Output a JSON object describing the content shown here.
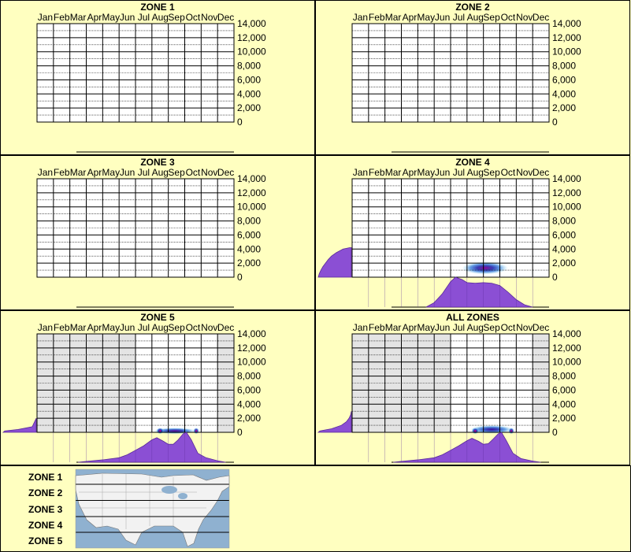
{
  "colors": {
    "background": "#ffffc0",
    "profile": "#8b4fd4",
    "heat_core": "#ff0090",
    "heat_dark": "#1a0a9a",
    "heat_mid": "#1e6fd8",
    "heat_light": "#8fdcf0",
    "masked": "#e4e4e4",
    "map_water": "#8fb1d0",
    "map_land": "#f2f2f2"
  },
  "chart_data": [
    {
      "type": "heatmap",
      "title": "ZONE 1",
      "categories": [
        "Jan",
        "Feb",
        "Mar",
        "Apr",
        "May",
        "Jun",
        "Jul",
        "Aug",
        "Sep",
        "Oct",
        "Nov",
        "Dec"
      ],
      "ylim": [
        0,
        14000
      ],
      "yticks": [
        "0",
        "2,000",
        "4,000",
        "6,000",
        "8,000",
        "10,000",
        "12,000",
        "14,000"
      ],
      "masked_months": [],
      "hotspots": [],
      "elevation_profile": [],
      "season_profile": []
    },
    {
      "type": "heatmap",
      "title": "ZONE 2",
      "categories": [
        "Jan",
        "Feb",
        "Mar",
        "Apr",
        "May",
        "Jun",
        "Jul",
        "Aug",
        "Sep",
        "Oct",
        "Nov",
        "Dec"
      ],
      "ylim": [
        0,
        14000
      ],
      "yticks": [
        "0",
        "2,000",
        "4,000",
        "6,000",
        "8,000",
        "10,000",
        "12,000",
        "14,000"
      ],
      "masked_months": [],
      "hotspots": [],
      "elevation_profile": [],
      "season_profile": []
    },
    {
      "type": "heatmap",
      "title": "ZONE 3",
      "categories": [
        "Jan",
        "Feb",
        "Mar",
        "Apr",
        "May",
        "Jun",
        "Jul",
        "Aug",
        "Sep",
        "Oct",
        "Nov",
        "Dec"
      ],
      "ylim": [
        0,
        14000
      ],
      "yticks": [
        "0",
        "2,000",
        "4,000",
        "6,000",
        "8,000",
        "10,000",
        "12,000",
        "14,000"
      ],
      "masked_months": [],
      "hotspots": [],
      "elevation_profile": [],
      "season_profile": []
    },
    {
      "type": "heatmap",
      "title": "ZONE 4",
      "categories": [
        "Jan",
        "Feb",
        "Mar",
        "Apr",
        "May",
        "Jun",
        "Jul",
        "Aug",
        "Sep",
        "Oct",
        "Nov",
        "Dec"
      ],
      "ylim": [
        0,
        14000
      ],
      "yticks": [
        "0",
        "2,000",
        "4,000",
        "6,000",
        "8,000",
        "10,000",
        "12,000",
        "14,000"
      ],
      "masked_months": [],
      "hotspots": [
        {
          "month": 8.6,
          "elev": 1300,
          "spread_month": 2.8,
          "spread_elev": 900,
          "intensity": 0.85
        }
      ],
      "elevation_profile": [
        [
          0,
          1.0
        ],
        [
          500,
          0.97
        ],
        [
          1000,
          0.92
        ],
        [
          1500,
          0.86
        ],
        [
          2000,
          0.78
        ],
        [
          2500,
          0.7
        ],
        [
          3000,
          0.6
        ],
        [
          3500,
          0.45
        ],
        [
          4000,
          0.25
        ],
        [
          4200,
          0.05
        ]
      ],
      "season_profile": [
        [
          5.5,
          0
        ],
        [
          6.0,
          0.15
        ],
        [
          6.5,
          0.45
        ],
        [
          7.0,
          0.85
        ],
        [
          7.3,
          1.0
        ],
        [
          7.7,
          0.92
        ],
        [
          8.0,
          0.82
        ],
        [
          8.5,
          0.8
        ],
        [
          9.0,
          0.82
        ],
        [
          9.5,
          0.8
        ],
        [
          10.0,
          0.72
        ],
        [
          10.5,
          0.5
        ],
        [
          11.0,
          0.25
        ],
        [
          11.5,
          0.08
        ],
        [
          12.0,
          0
        ]
      ]
    },
    {
      "type": "heatmap",
      "title": "ZONE 5",
      "categories": [
        "Jan",
        "Feb",
        "Mar",
        "Apr",
        "May",
        "Jun",
        "Jul",
        "Aug",
        "Sep",
        "Oct",
        "Nov",
        "Dec"
      ],
      "ylim": [
        0,
        14000
      ],
      "yticks": [
        "0",
        "2,000",
        "4,000",
        "6,000",
        "8,000",
        "10,000",
        "12,000",
        "14,000"
      ],
      "masked_months": [
        1,
        2,
        3,
        4,
        5,
        6,
        12
      ],
      "hotspots": [
        {
          "month": 8.9,
          "elev": 200,
          "spread_month": 2.6,
          "spread_elev": 380,
          "intensity": 0.8
        },
        {
          "month": 8.0,
          "elev": 200,
          "spread_month": 0.45,
          "spread_elev": 180,
          "intensity": 1.0
        },
        {
          "month": 10.2,
          "elev": 200,
          "spread_month": 0.35,
          "spread_elev": 180,
          "intensity": 1.0
        }
      ],
      "elevation_profile": [
        [
          0,
          1.0
        ],
        [
          200,
          0.95
        ],
        [
          400,
          0.55
        ],
        [
          800,
          0.12
        ],
        [
          1500,
          0.05
        ],
        [
          2000,
          0
        ]
      ],
      "season_profile": [
        [
          3.5,
          0
        ],
        [
          4.0,
          0.03
        ],
        [
          5.0,
          0.08
        ],
        [
          6.0,
          0.15
        ],
        [
          6.5,
          0.25
        ],
        [
          7.0,
          0.4
        ],
        [
          7.5,
          0.55
        ],
        [
          8.0,
          0.75
        ],
        [
          8.3,
          0.82
        ],
        [
          8.7,
          0.7
        ],
        [
          9.0,
          0.6
        ],
        [
          9.3,
          0.6
        ],
        [
          9.6,
          0.75
        ],
        [
          9.9,
          0.95
        ],
        [
          10.1,
          1.0
        ],
        [
          10.4,
          0.75
        ],
        [
          10.8,
          0.3
        ],
        [
          11.3,
          0.15
        ],
        [
          12.0,
          0.05
        ],
        [
          12.5,
          0
        ]
      ]
    },
    {
      "type": "heatmap",
      "title": "ALL ZONES",
      "categories": [
        "Jan",
        "Feb",
        "Mar",
        "Apr",
        "May",
        "Jun",
        "Jul",
        "Aug",
        "Sep",
        "Oct",
        "Nov",
        "Dec"
      ],
      "ylim": [
        0,
        14000
      ],
      "yticks": [
        "0",
        "2,000",
        "4,000",
        "6,000",
        "8,000",
        "10,000",
        "12,000",
        "14,000"
      ],
      "masked_months": [
        1,
        2,
        3,
        4,
        5,
        6,
        12
      ],
      "hotspots": [
        {
          "month": 9.0,
          "elev": 400,
          "spread_month": 2.6,
          "spread_elev": 600,
          "intensity": 0.75
        },
        {
          "month": 8.0,
          "elev": 200,
          "spread_month": 0.45,
          "spread_elev": 180,
          "intensity": 1.0
        },
        {
          "month": 10.2,
          "elev": 200,
          "spread_month": 0.35,
          "spread_elev": 180,
          "intensity": 1.0
        }
      ],
      "elevation_profile": [
        [
          0,
          1.0
        ],
        [
          200,
          0.95
        ],
        [
          500,
          0.6
        ],
        [
          1000,
          0.3
        ],
        [
          1500,
          0.15
        ],
        [
          2000,
          0.07
        ],
        [
          2500,
          0.02
        ],
        [
          3000,
          0
        ]
      ],
      "season_profile": [
        [
          3.5,
          0
        ],
        [
          4.0,
          0.03
        ],
        [
          5.0,
          0.08
        ],
        [
          6.0,
          0.15
        ],
        [
          6.5,
          0.25
        ],
        [
          7.0,
          0.4
        ],
        [
          7.5,
          0.55
        ],
        [
          8.0,
          0.72
        ],
        [
          8.3,
          0.8
        ],
        [
          8.7,
          0.7
        ],
        [
          9.0,
          0.6
        ],
        [
          9.3,
          0.62
        ],
        [
          9.6,
          0.78
        ],
        [
          9.9,
          0.95
        ],
        [
          10.1,
          1.0
        ],
        [
          10.4,
          0.72
        ],
        [
          10.8,
          0.3
        ],
        [
          11.3,
          0.12
        ],
        [
          12.0,
          0.04
        ],
        [
          12.5,
          0
        ]
      ]
    }
  ],
  "legend": {
    "zones": [
      "ZONE 1",
      "ZONE 2",
      "ZONE 3",
      "ZONE 4",
      "ZONE 5"
    ]
  }
}
